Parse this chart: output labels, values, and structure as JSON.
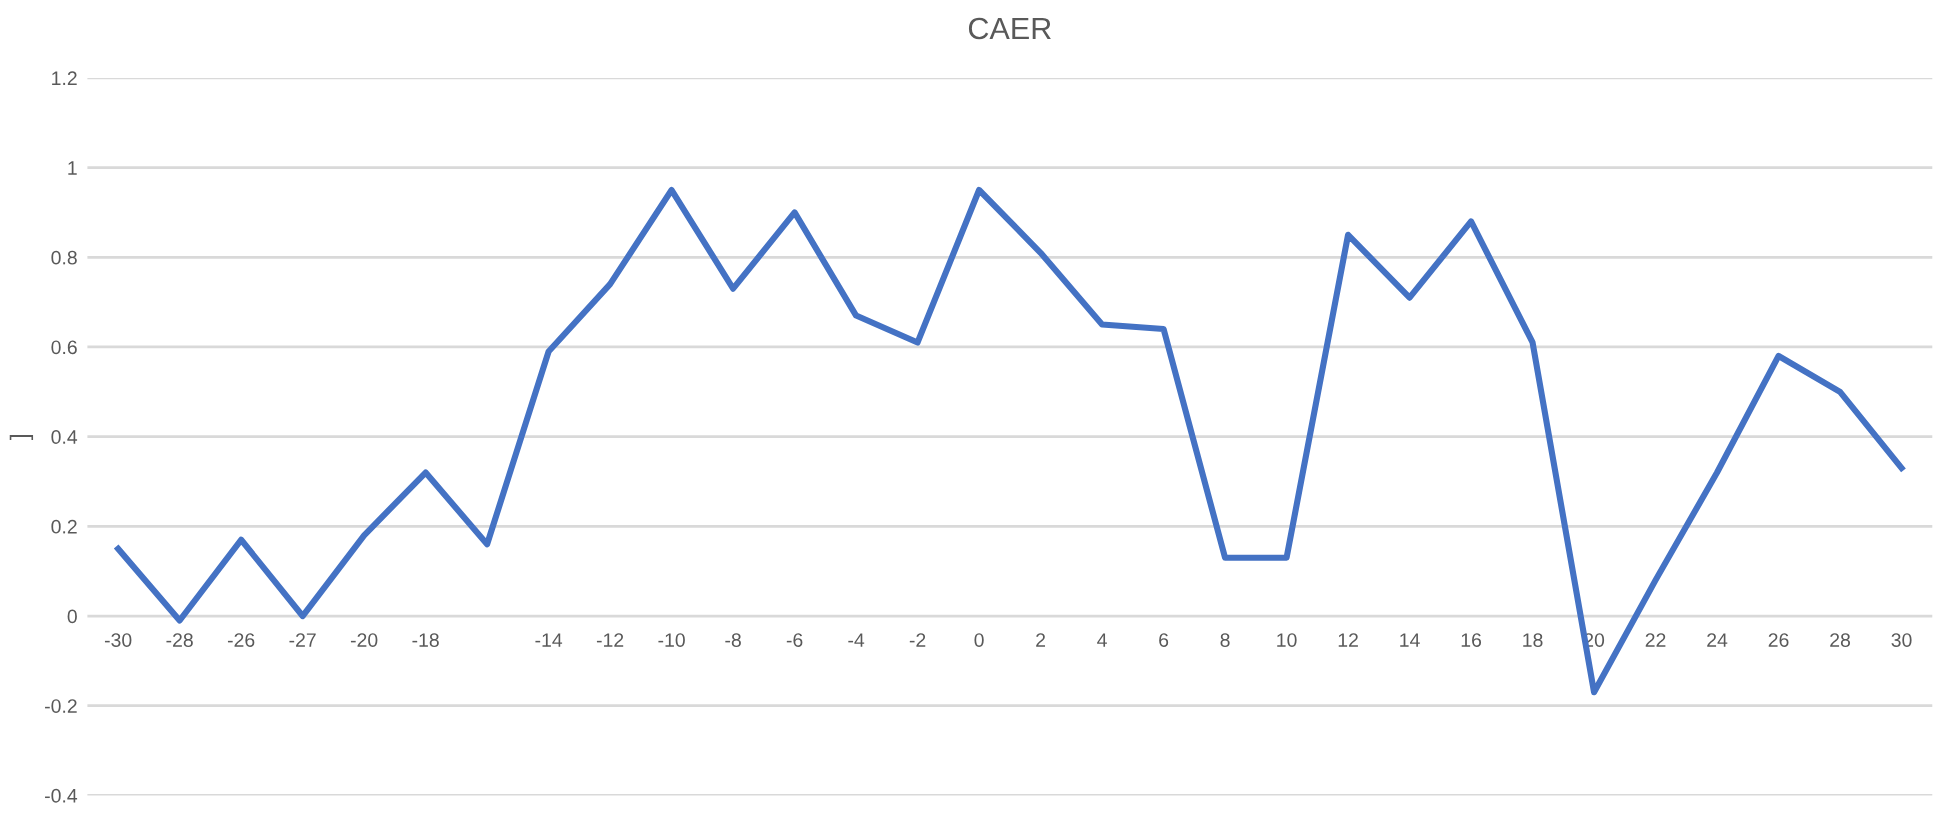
{
  "chart_data": {
    "type": "line",
    "title": "CAER",
    "ylabel": "]",
    "categories": [
      "-30",
      "-28",
      "-26",
      "-27",
      "-20",
      "-18",
      null,
      "-14",
      "-12",
      "-10",
      "-8",
      "-6",
      "-4",
      "-2",
      "0",
      "2",
      "4",
      "6",
      "8",
      "10",
      "12",
      "14",
      "16",
      "18",
      "20",
      "22",
      "24",
      "26",
      "28",
      "30"
    ],
    "series": [
      {
        "color": "#4472c4",
        "values": [
          0.15,
          -0.01,
          0.17,
          0.0,
          0.18,
          0.32,
          0.16,
          0.59,
          0.74,
          0.95,
          0.73,
          0.9,
          0.67,
          0.61,
          0.95,
          0.81,
          0.65,
          0.64,
          0.13,
          0.13,
          0.85,
          0.71,
          0.88,
          0.61,
          -0.17,
          0.08,
          0.32,
          0.58,
          0.5,
          0.33
        ]
      }
    ],
    "ylim": [
      -0.4,
      1.2
    ],
    "yticks": [
      -0.4,
      -0.2,
      0,
      0.2,
      0.4,
      0.6,
      0.8,
      1,
      1.2
    ],
    "grid": "y",
    "marker": "none",
    "line_style": "solid"
  }
}
